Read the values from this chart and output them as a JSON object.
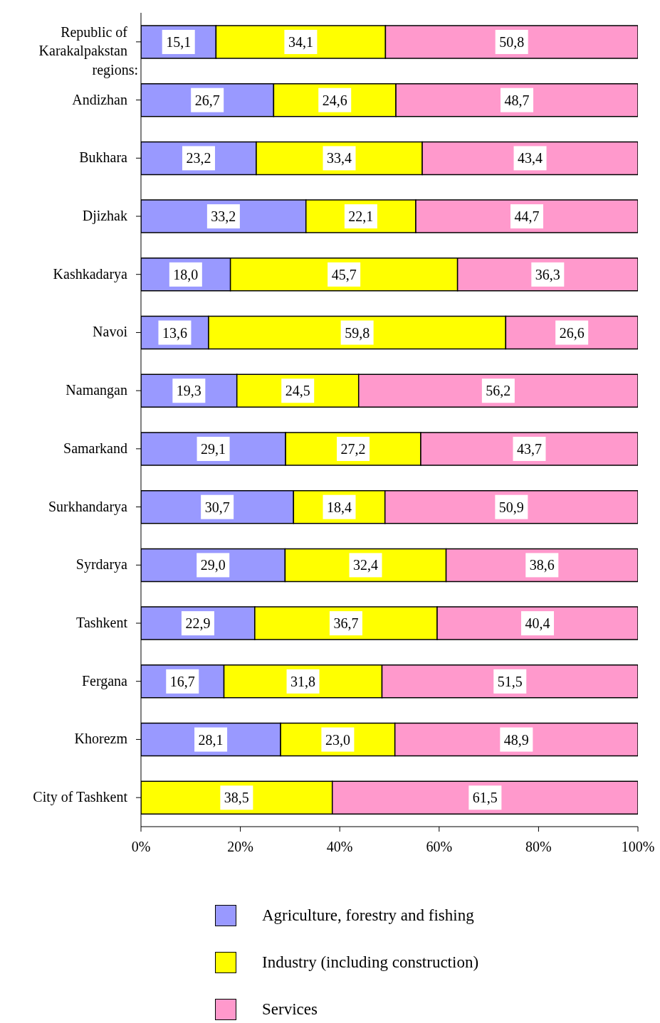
{
  "chart_data": {
    "type": "bar",
    "orientation": "horizontal",
    "stacked": true,
    "categories": [
      "Republic of Karakalpakstan",
      "Andizhan",
      "Bukhara",
      "Djizhak",
      "Kashkadarya",
      "Navoi",
      "Namangan",
      "Samarkand",
      "Surkhandarya",
      "Syrdarya",
      "Tashkent",
      "Fergana",
      "Khorezm",
      "City of Tashkent"
    ],
    "series": [
      {
        "name": "Agriculture, forestry and fishing",
        "color": "#9999ff",
        "values": [
          15.1,
          26.7,
          23.2,
          33.2,
          18.0,
          13.6,
          19.3,
          29.1,
          30.7,
          29.0,
          22.9,
          16.7,
          28.1,
          null
        ],
        "value_labels": [
          "15,1",
          "26,7",
          "23,2",
          "33,2",
          "18,0",
          "13,6",
          "19,3",
          "29,1",
          "30,7",
          "29,0",
          "22,9",
          "16,7",
          "28,1",
          null
        ]
      },
      {
        "name": "Industry (including construction)",
        "color": "#ffff00",
        "values": [
          34.1,
          24.6,
          33.4,
          22.1,
          45.7,
          59.8,
          24.5,
          27.2,
          18.4,
          32.4,
          36.7,
          31.8,
          23.0,
          38.5
        ],
        "value_labels": [
          "34,1",
          "24,6",
          "33,4",
          "22,1",
          "45,7",
          "59,8",
          "24,5",
          "27,2",
          "18,4",
          "32,4",
          "36,7",
          "31,8",
          "23,0",
          "38,5"
        ]
      },
      {
        "name": "Services",
        "color": "#ff99cc",
        "values": [
          50.8,
          48.7,
          43.4,
          44.7,
          36.3,
          26.6,
          56.2,
          43.7,
          50.9,
          38.6,
          40.4,
          51.5,
          48.9,
          61.5
        ],
        "value_labels": [
          "50,8",
          "48,7",
          "43,4",
          "44,7",
          "36,3",
          "26,6",
          "56,2",
          "43,7",
          "50,9",
          "38,6",
          "40,4",
          "51,5",
          "48,9",
          "61,5"
        ]
      }
    ],
    "xlim": [
      0,
      100
    ],
    "xticks": [
      {
        "value": 0,
        "label": "0%"
      },
      {
        "value": 20,
        "label": "20%"
      },
      {
        "value": 40,
        "label": "40%"
      },
      {
        "value": 60,
        "label": "60%"
      },
      {
        "value": 80,
        "label": "80%"
      },
      {
        "value": 100,
        "label": "100%"
      }
    ],
    "annotations": [
      "regions:"
    ],
    "legend": "bottom"
  }
}
